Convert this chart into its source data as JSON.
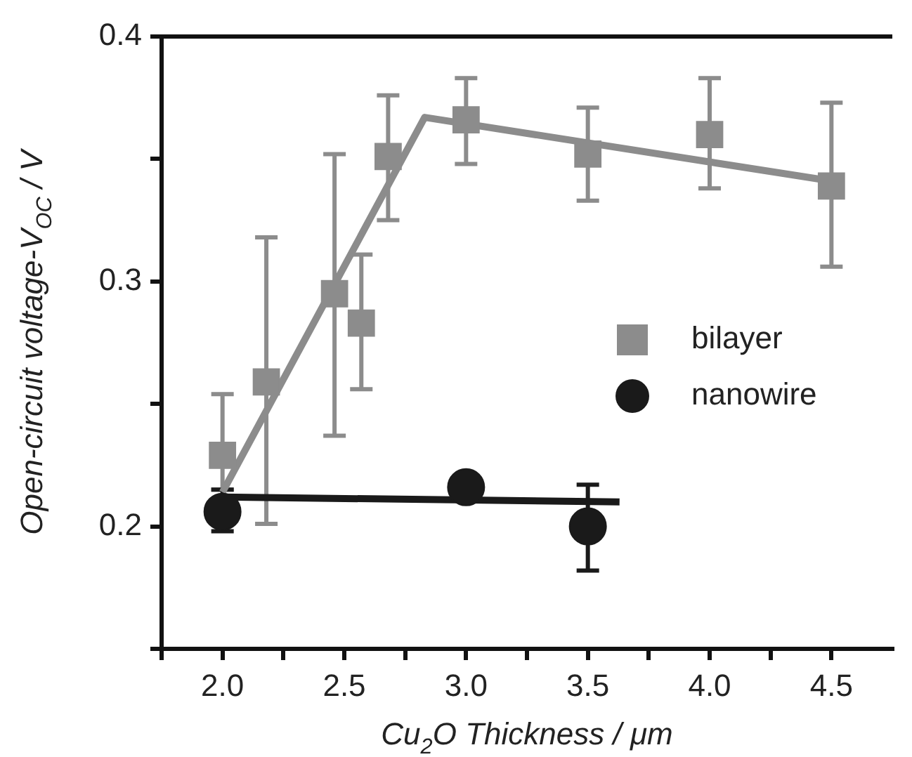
{
  "chart_data": {
    "type": "scatter",
    "xlabel": "Cu$_{2}$O Thickness / μm",
    "ylabel": "Open-circuit voltage-V$_{OC}$ / V",
    "xlim": [
      1.75,
      4.75
    ],
    "ylim": [
      0.15,
      0.4
    ],
    "xticks": [
      {
        "value": 1.75,
        "label": null
      },
      {
        "value": 2,
        "label": "2.0"
      },
      {
        "value": 2.25,
        "label": null
      },
      {
        "value": 2.5,
        "label": "2.5"
      },
      {
        "value": 2.75,
        "label": null
      },
      {
        "value": 3,
        "label": "3.0"
      },
      {
        "value": 3.25,
        "label": null
      },
      {
        "value": 3.5,
        "label": "3.5"
      },
      {
        "value": 3.75,
        "label": null
      },
      {
        "value": 4,
        "label": "4.0"
      },
      {
        "value": 4.25,
        "label": null
      },
      {
        "value": 4.5,
        "label": "4.5"
      }
    ],
    "yticks": [
      {
        "value": 0.15,
        "label": null
      },
      0.2,
      {
        "value": 0.25,
        "label": null
      },
      0.3,
      {
        "value": 0.35,
        "label": null
      },
      0.4
    ],
    "grid": false,
    "legend": "right",
    "series": [
      {
        "name": "bilayer",
        "color": "#8c8c8c",
        "marker": "square",
        "x": [
          2.0,
          2.18,
          2.46,
          2.57,
          2.68,
          3.0,
          3.5,
          4.0,
          4.5
        ],
        "values": [
          0.229,
          0.259,
          0.295,
          0.283,
          0.351,
          0.366,
          0.352,
          0.36,
          0.339
        ],
        "errors": [
          [
            0.215,
            0.254
          ],
          [
            0.201,
            0.318
          ],
          [
            0.237,
            0.352
          ],
          [
            0.256,
            0.311
          ],
          [
            0.325,
            0.376
          ],
          [
            0.348,
            0.383
          ],
          [
            0.333,
            0.371
          ],
          [
            0.338,
            0.383
          ],
          [
            0.306,
            0.373
          ]
        ]
      },
      {
        "name": "nanowire",
        "color": "#1a1a1a",
        "marker": "circle",
        "x": [
          2.0,
          3.0,
          3.5
        ],
        "values": [
          0.206,
          0.216,
          0.2
        ],
        "errors": [
          [
            0.198,
            0.215
          ],
          null,
          [
            0.182,
            0.217
          ]
        ]
      },
      {
        "type": "line",
        "color": "#8c8c8c",
        "marker": "none",
        "x": [
          2.0,
          2.83,
          4.5
        ],
        "values": [
          0.214,
          0.367,
          0.341
        ]
      },
      {
        "type": "line",
        "color": "#1a1a1a",
        "marker": "none",
        "x": [
          2.0,
          3.63
        ],
        "values": [
          0.212,
          0.21
        ]
      }
    ]
  }
}
